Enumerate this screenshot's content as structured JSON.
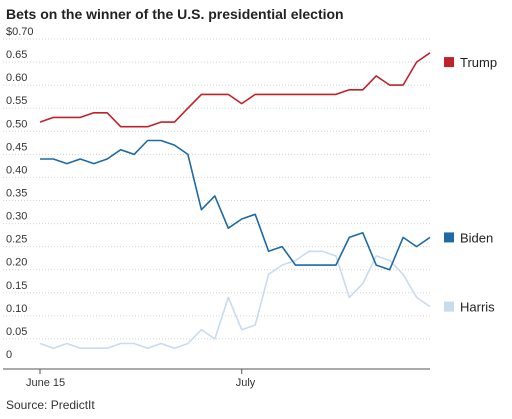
{
  "title": "Bets on the winner of the U.S. presidential election",
  "source": "Source: PredictIt",
  "chart_data": {
    "type": "line",
    "title": "Bets on the winner of the U.S. presidential election",
    "ylim": [
      0,
      0.7
    ],
    "yticks": [
      "$0.70",
      "0.65",
      "0.60",
      "0.55",
      "0.50",
      "0.45",
      "0.40",
      "0.35",
      "0.30",
      "0.25",
      "0.20",
      "0.15",
      "0.10",
      "0.05",
      "0"
    ],
    "ytick_values": [
      0.7,
      0.65,
      0.6,
      0.55,
      0.5,
      0.45,
      0.4,
      0.35,
      0.3,
      0.25,
      0.2,
      0.15,
      0.1,
      0.05,
      0
    ],
    "xticks": [
      "June 15",
      "July"
    ],
    "xtick_positions": [
      0,
      15
    ],
    "x": [
      0,
      1,
      2,
      3,
      4,
      5,
      6,
      7,
      8,
      9,
      10,
      11,
      12,
      13,
      14,
      15,
      16,
      17,
      18,
      19,
      20,
      21,
      22,
      23,
      24,
      25,
      26,
      27,
      28,
      29
    ],
    "grid": true,
    "legend": "right",
    "series": [
      {
        "name": "Trump",
        "color": "#c0222b",
        "values": [
          0.52,
          0.53,
          0.53,
          0.53,
          0.54,
          0.54,
          0.51,
          0.51,
          0.51,
          0.52,
          0.52,
          0.55,
          0.58,
          0.58,
          0.58,
          0.56,
          0.58,
          0.58,
          0.58,
          0.58,
          0.58,
          0.58,
          0.58,
          0.59,
          0.59,
          0.62,
          0.6,
          0.6,
          0.65,
          0.67
        ]
      },
      {
        "name": "Biden",
        "color": "#1e6aa6",
        "values": [
          0.44,
          0.44,
          0.43,
          0.44,
          0.43,
          0.44,
          0.46,
          0.45,
          0.48,
          0.48,
          0.47,
          0.45,
          0.33,
          0.36,
          0.29,
          0.31,
          0.32,
          0.24,
          0.25,
          0.21,
          0.21,
          0.21,
          0.21,
          0.27,
          0.28,
          0.21,
          0.2,
          0.27,
          0.25,
          0.27
        ]
      },
      {
        "name": "Harris",
        "color": "#c8dcef",
        "values": [
          0.04,
          0.03,
          0.04,
          0.03,
          0.03,
          0.03,
          0.04,
          0.04,
          0.03,
          0.04,
          0.03,
          0.04,
          0.07,
          0.05,
          0.14,
          0.07,
          0.08,
          0.19,
          0.21,
          0.22,
          0.24,
          0.24,
          0.23,
          0.14,
          0.17,
          0.23,
          0.22,
          0.19,
          0.14,
          0.12
        ]
      }
    ]
  }
}
